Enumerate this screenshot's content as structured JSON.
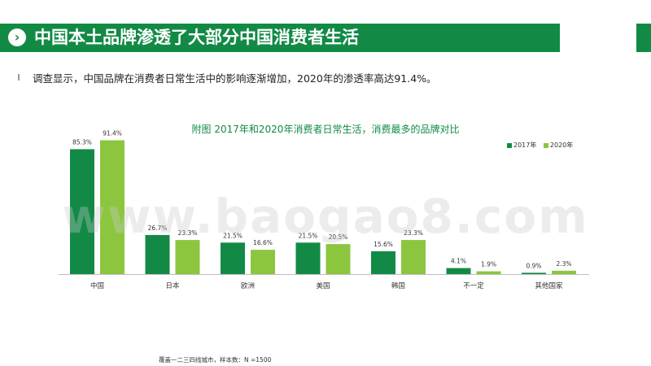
{
  "header": {
    "title": "中国本土品牌渗透了大部分中国消费者生活",
    "arrow_icon": "chevron-right-icon",
    "bar_color": "#128a45"
  },
  "subtitle": "调查显示，中国品牌在消费者日常生活中的影响逐渐增加，2020年的渗透率高达91.4%。",
  "watermark": "www.baogao8.com",
  "footnote": "覆盖一二三四线城市，样本数：N =1500",
  "chart_data": {
    "type": "bar",
    "title": "附图 2017年和2020年消费者日常生活，消费最多的品牌对比",
    "categories": [
      "中国",
      "日本",
      "欧洲",
      "美国",
      "韩国",
      "不一定",
      "其他国家"
    ],
    "series": [
      {
        "name": "2017年",
        "color": "#128a45",
        "values": [
          85.3,
          26.7,
          21.5,
          21.5,
          15.6,
          4.1,
          0.9
        ]
      },
      {
        "name": "2020年",
        "color": "#8cc63f",
        "values": [
          91.4,
          23.3,
          16.6,
          20.5,
          23.3,
          1.9,
          2.3
        ]
      }
    ],
    "value_labels": [
      [
        "85.3%",
        "26.7%",
        "21.5%",
        "21.5%",
        "15.6%",
        "4.1%",
        "0.9%"
      ],
      [
        "91.4%",
        "23.3%",
        "16.6%",
        "20.5%",
        "23.3%",
        "1.9%",
        "2.3%"
      ]
    ],
    "ylim": [
      0,
      100
    ],
    "grid": false,
    "legend_position": "top-right"
  }
}
